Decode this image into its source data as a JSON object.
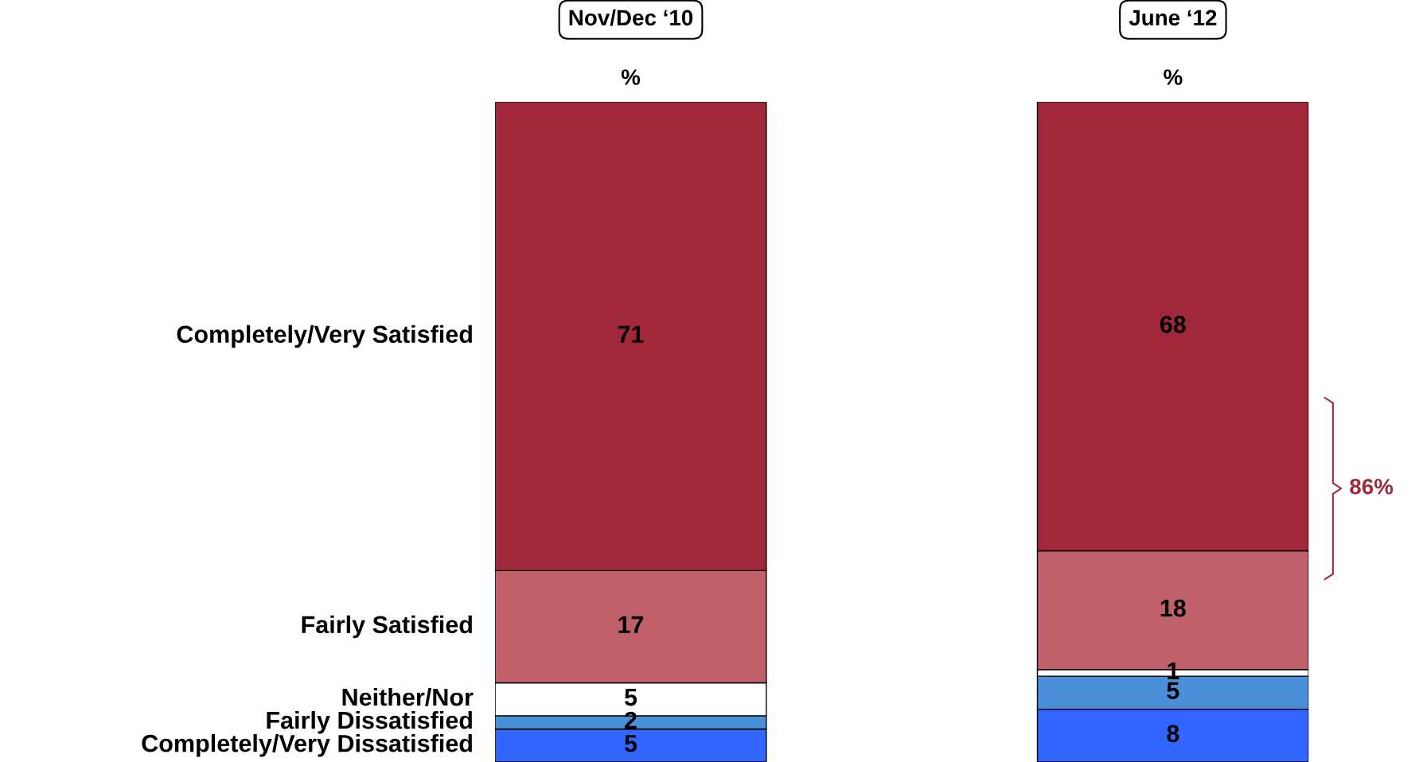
{
  "chart_data": {
    "type": "bar",
    "stacked": true,
    "categories": [
      "Nov/Dec ‘10",
      "June ‘12"
    ],
    "series": [
      {
        "name": "Completely/Very Dissatisfied",
        "color": "#3366ff",
        "values": [
          5,
          8
        ]
      },
      {
        "name": "Fairly Dissatisfied",
        "color": "#4a90d8",
        "values": [
          2,
          5
        ]
      },
      {
        "name": "Neither/Nor",
        "color": "#ffffff",
        "values": [
          5,
          1
        ]
      },
      {
        "name": "Fairly Satisfied",
        "color": "#c0606b",
        "values": [
          17,
          18
        ]
      },
      {
        "name": "Completely/Very Satisfied",
        "color": "#a0283a",
        "values": [
          71,
          68
        ]
      }
    ],
    "data_labels": true,
    "annotations": [
      "%",
      "%",
      "86%"
    ]
  }
}
